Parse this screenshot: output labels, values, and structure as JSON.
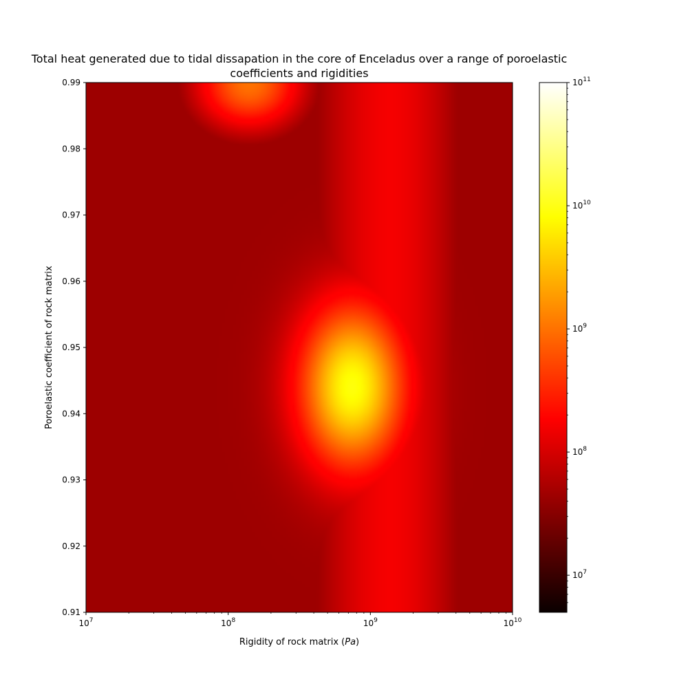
{
  "chart_data": {
    "type": "heatmap",
    "title_line1": "Total heat generated due to tidal dissapation in the core of Enceladus over a range of poroelastic",
    "title_line2": "coefficients and rigidities",
    "xlabel": "Rigidity of rock matrix (",
    "xlabel_unit": "Pa",
    "xlabel_close": ")",
    "ylabel": "Poroelastic coefficient of rock matrix",
    "x_scale": "log",
    "xlim": [
      10000000,
      10000000000
    ],
    "ylim": [
      0.91,
      0.99
    ],
    "x_ticks": [
      {
        "value": 10000000,
        "base": "10",
        "exp": "7"
      },
      {
        "value": 100000000,
        "base": "10",
        "exp": "8"
      },
      {
        "value": 1000000000,
        "base": "10",
        "exp": "9"
      },
      {
        "value": 10000000000,
        "base": "10",
        "exp": "10"
      }
    ],
    "y_ticks": [
      {
        "value": 0.91,
        "label": "0.91"
      },
      {
        "value": 0.92,
        "label": "0.92"
      },
      {
        "value": 0.93,
        "label": "0.93"
      },
      {
        "value": 0.94,
        "label": "0.94"
      },
      {
        "value": 0.95,
        "label": "0.95"
      },
      {
        "value": 0.96,
        "label": "0.96"
      },
      {
        "value": 0.97,
        "label": "0.97"
      },
      {
        "value": 0.98,
        "label": "0.98"
      },
      {
        "value": 0.99,
        "label": "0.99"
      }
    ],
    "colorbar": {
      "colormap": "hot",
      "scale": "log",
      "range": [
        5000000,
        100000000000
      ],
      "major_ticks": [
        {
          "value": 10000000,
          "base": "10",
          "exp": "7"
        },
        {
          "value": 100000000,
          "base": "10",
          "exp": "8"
        },
        {
          "value": 1000000000,
          "base": "10",
          "exp": "9"
        },
        {
          "value": 10000000000,
          "base": "10",
          "exp": "10"
        },
        {
          "value": 100000000000,
          "base": "10",
          "exp": "11"
        }
      ]
    },
    "features": [
      {
        "x": 750000000,
        "y": 0.944,
        "peak_value": 9000000000
      },
      {
        "x": 140000000,
        "y": 0.99,
        "peak_value": 1000000000
      }
    ]
  }
}
